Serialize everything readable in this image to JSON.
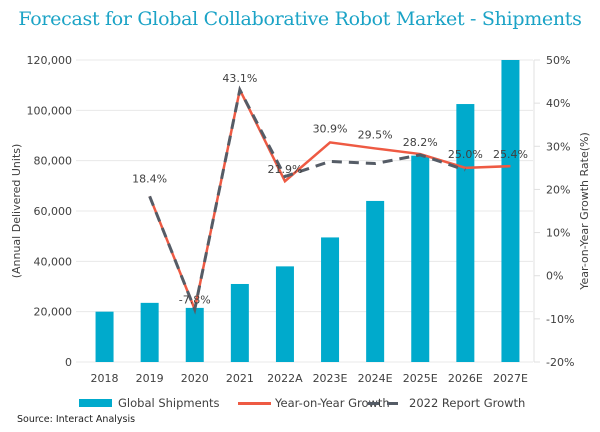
{
  "chart_data": {
    "type": "bar",
    "title": "Forecast for Global Collaborative Robot Market - Shipments",
    "categories": [
      "2018",
      "2019",
      "2020",
      "2021",
      "2022A",
      "2023E",
      "2024E",
      "2025E",
      "2026E",
      "2027E"
    ],
    "ylabel": "(Annual Delivered Units)",
    "y2label": "Year-on-Year Growth Rate(%)",
    "ylim": [
      0,
      120000
    ],
    "y2lim": [
      -20,
      50
    ],
    "yticks": [
      "0",
      "20,000",
      "40,000",
      "60,000",
      "80,000",
      "100,000",
      "120,000"
    ],
    "y2ticks": [
      "-20%",
      "-10%",
      "0%",
      "10%",
      "20%",
      "30%",
      "40%",
      "50%"
    ],
    "grid": true,
    "legend_position": "bottom",
    "series": [
      {
        "name": "Global Shipments",
        "type": "bar",
        "axis": "left",
        "color": "#00aacc",
        "values": [
          20000,
          23500,
          21500,
          31000,
          38000,
          49500,
          64000,
          82000,
          102500,
          120000
        ]
      },
      {
        "name": "Year-on-Year Growth",
        "type": "line",
        "axis": "right",
        "color": "#ee5a43",
        "values": [
          null,
          18.4,
          -7.8,
          43.1,
          21.9,
          30.9,
          29.5,
          28.2,
          25.0,
          25.4
        ],
        "labels": [
          "",
          "18.4%",
          "-7.8%",
          "43.1%",
          "21.9%",
          "30.9%",
          "29.5%",
          "28.2%",
          "25.0%",
          "25.4%"
        ]
      },
      {
        "name": "2022 Report Growth",
        "type": "line",
        "style": "dashed",
        "axis": "right",
        "color": "#555c66",
        "values": [
          null,
          18.4,
          -7.8,
          43.1,
          23.0,
          26.5,
          26.0,
          28.0,
          24.5,
          null
        ]
      }
    ],
    "source": "Source: Interact Analysis"
  }
}
